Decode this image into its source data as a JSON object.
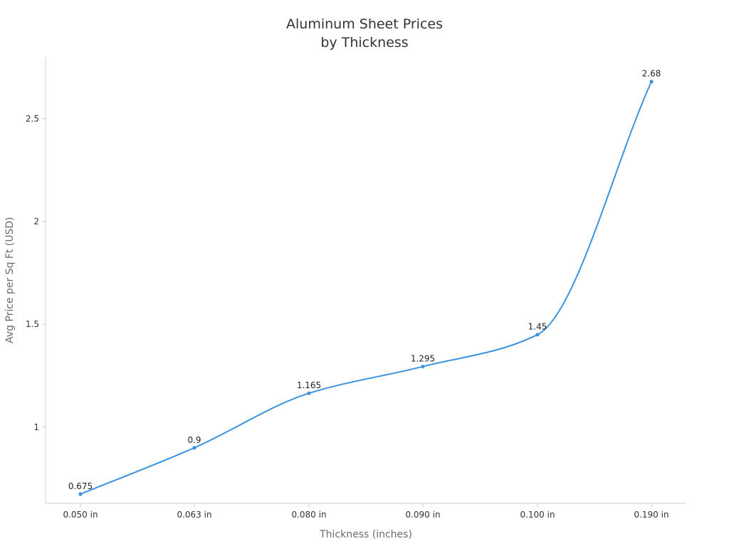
{
  "chart_data": {
    "type": "line",
    "title_lines": [
      "Aluminum Sheet Prices",
      "by Thickness"
    ],
    "xlabel": "Thickness (inches)",
    "ylabel": "Avg Price per Sq Ft (USD)",
    "categories": [
      "0.050 in",
      "0.063 in",
      "0.080 in",
      "0.090 in",
      "0.100 in",
      "0.190 in"
    ],
    "series": [
      {
        "values": [
          0.675,
          0.9,
          1.165,
          1.295,
          1.45,
          2.68
        ]
      }
    ],
    "data_labels": [
      "0.675",
      "0.9",
      "1.165",
      "1.295",
      "1.45",
      "2.68"
    ],
    "ylim": [
      0.63,
      2.8
    ],
    "yticks": [
      1,
      1.5,
      2,
      2.5
    ],
    "ytick_labels": [
      "1",
      "1.5",
      "2",
      "2.5"
    ],
    "grid": false,
    "smooth": true,
    "line_color": "#3a93e0"
  }
}
